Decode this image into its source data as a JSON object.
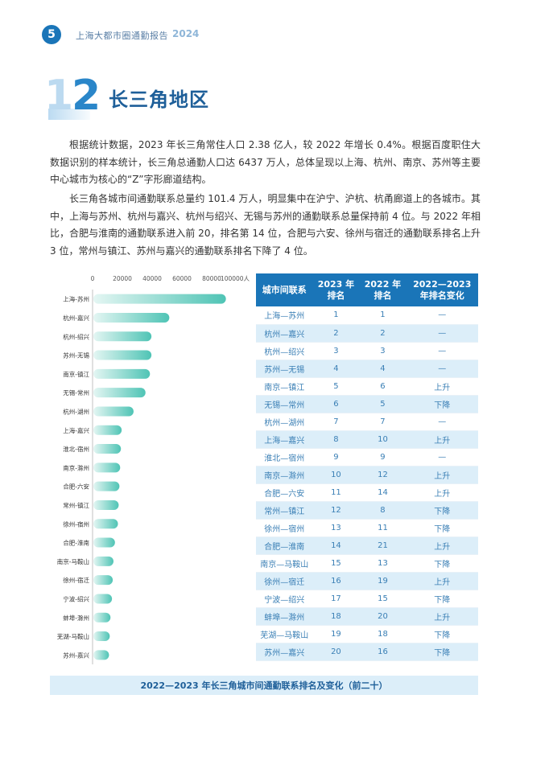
{
  "header": {
    "page_number": "5",
    "title": "上海大都市圈通勤报告",
    "year": "2024"
  },
  "section": {
    "number": "1.2",
    "number_left": "1.",
    "number_right": "2",
    "title": "长三角地区"
  },
  "paragraphs": [
    "根据统计数据，2023 年长三角常住人口 2.38 亿人，较 2022 年增长 0.4%。根据百度职住大数据识别的样本统计，长三角总通勤人口达 6437 万人，总体呈现以上海、杭州、南京、苏州等主要中心城市为核心的“Z”字形廊道结构。",
    "长三角各城市间通勤联系总量约 101.4 万人，明显集中在沪宁、沪杭、杭甬廊道上的各城市。其中，上海与苏州、杭州与嘉兴、杭州与绍兴、无锡与苏州的通勤联系总量保持前 4 位。与 2022 年相比，合肥与淮南的通勤联系进入前 20，排名第 14 位，合肥与六安、徐州与宿迁的通勤联系排名上升 3 位，常州与镇江、苏州与嘉兴的通勤联系排名下降了 4 位。"
  ],
  "chart_data": {
    "type": "bar",
    "orientation": "horizontal",
    "categories": [
      "上海-苏州",
      "杭州-嘉兴",
      "杭州-绍兴",
      "苏州-无锡",
      "南京-镇江",
      "无锡-常州",
      "杭州-湖州",
      "上海-嘉兴",
      "淮北-宿州",
      "南京-滁州",
      "合肥-六安",
      "常州-镇江",
      "徐州-宿州",
      "合肥-淮南",
      "南京-马鞍山",
      "徐州-宿迁",
      "宁波-绍兴",
      "蚌埠-滁州",
      "芜湖-马鞍山",
      "苏州-嘉兴"
    ],
    "values": [
      89000,
      51000,
      39000,
      39000,
      38000,
      35000,
      27000,
      19000,
      18500,
      18000,
      17500,
      17000,
      16500,
      14500,
      13500,
      13000,
      12500,
      11500,
      11000,
      10500
    ],
    "x_ticks": [
      "0",
      "20000",
      "40000",
      "60000",
      "80000",
      "100000"
    ],
    "x_unit": "人",
    "xlim": [
      0,
      100000
    ],
    "colors": {
      "bar_start": "#e4f6f3",
      "bar_end": "#4fc4b5"
    }
  },
  "table": {
    "headers": [
      "城市间联系",
      "2023 年\n排名",
      "2022 年\n排名",
      "2022—2023\n年排名变化"
    ],
    "rows": [
      [
        "上海—苏州",
        "1",
        "1",
        "—"
      ],
      [
        "杭州—嘉兴",
        "2",
        "2",
        "—"
      ],
      [
        "杭州—绍兴",
        "3",
        "3",
        "—"
      ],
      [
        "苏州—无锡",
        "4",
        "4",
        "—"
      ],
      [
        "南京—镇江",
        "5",
        "6",
        "上升"
      ],
      [
        "无锡—常州",
        "6",
        "5",
        "下降"
      ],
      [
        "杭州—湖州",
        "7",
        "7",
        "—"
      ],
      [
        "上海—嘉兴",
        "8",
        "10",
        "上升"
      ],
      [
        "淮北—宿州",
        "9",
        "9",
        "—"
      ],
      [
        "南京—滁州",
        "10",
        "12",
        "上升"
      ],
      [
        "合肥—六安",
        "11",
        "14",
        "上升"
      ],
      [
        "常州—镇江",
        "12",
        "8",
        "下降"
      ],
      [
        "徐州—宿州",
        "13",
        "11",
        "下降"
      ],
      [
        "合肥—淮南",
        "14",
        "21",
        "上升"
      ],
      [
        "南京—马鞍山",
        "15",
        "13",
        "下降"
      ],
      [
        "徐州—宿迁",
        "16",
        "19",
        "上升"
      ],
      [
        "宁波—绍兴",
        "17",
        "15",
        "下降"
      ],
      [
        "蚌埠—滁州",
        "18",
        "20",
        "上升"
      ],
      [
        "芜湖—马鞍山",
        "19",
        "18",
        "下降"
      ],
      [
        "苏州—嘉兴",
        "20",
        "16",
        "下降"
      ]
    ]
  },
  "caption": "2022—2023 年长三角城市间通勤联系排名及变化（前二十）",
  "colors": {
    "accent": "#1a75b8",
    "title": "#1e5f99",
    "row_alt": "#dceef9"
  }
}
